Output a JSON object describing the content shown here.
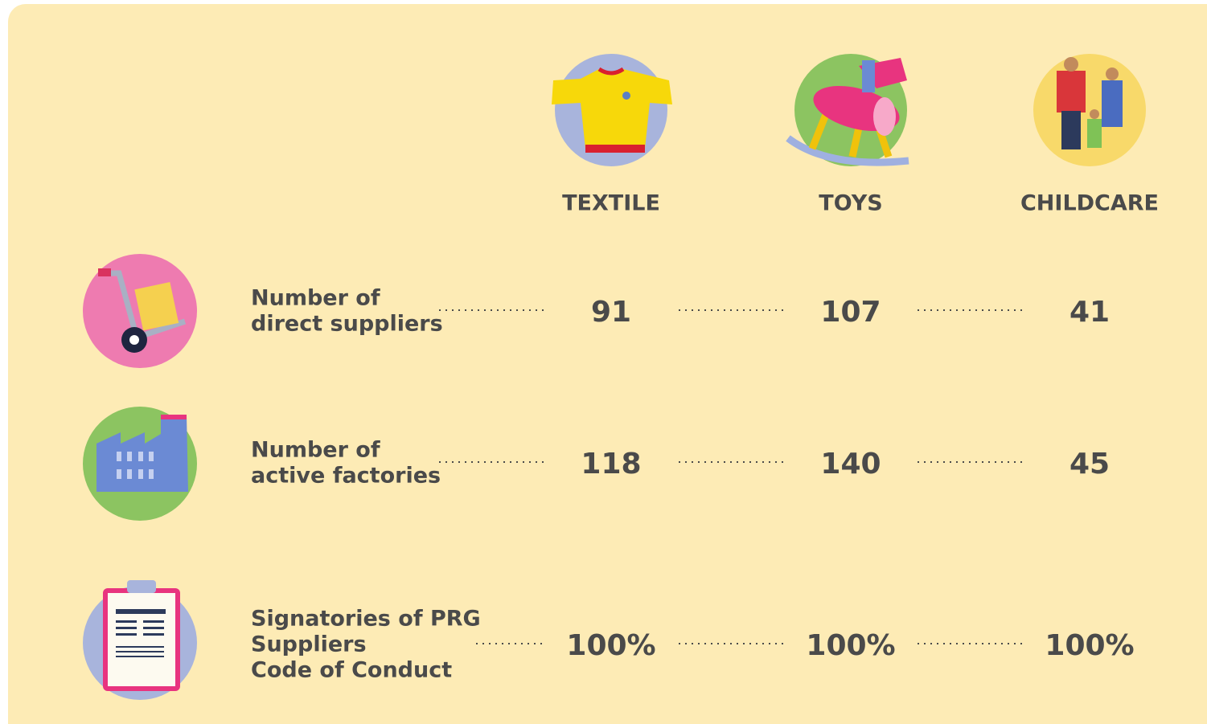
{
  "columns": [
    "TEXTILE",
    "TOYS",
    "CHILDCARE"
  ],
  "rows": [
    {
      "label": [
        "Number of",
        "direct suppliers"
      ],
      "values": [
        "91",
        "107",
        "41"
      ]
    },
    {
      "label": [
        "Number of",
        "active factories"
      ],
      "values": [
        "118",
        "140",
        "45"
      ]
    },
    {
      "label": [
        "Signatories of PRG",
        "Suppliers",
        "Code of Conduct"
      ],
      "values": [
        "100%",
        "100%",
        "100%"
      ]
    }
  ]
}
